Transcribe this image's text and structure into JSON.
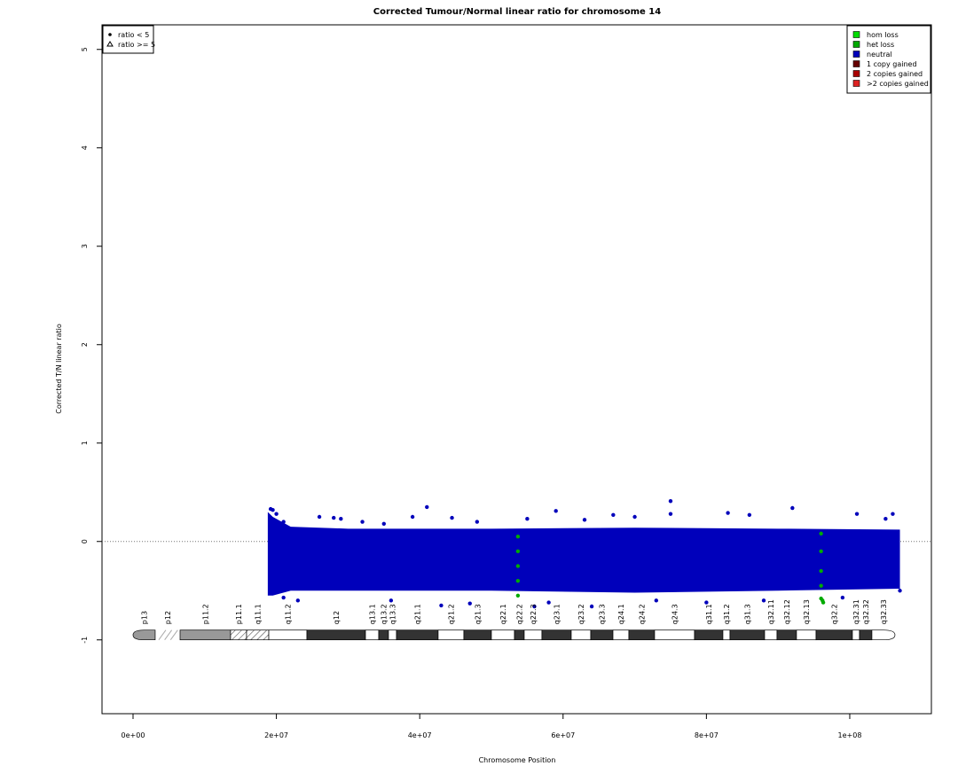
{
  "chart_data": {
    "type": "scatter",
    "title": "Corrected Tumour/Normal linear ratio for chromosome  14",
    "xlabel": "Chromosome Position",
    "ylabel": "Corrected T/N linear ratio",
    "xlim": [
      -4330000,
      111390000
    ],
    "ylim": [
      -1.75,
      5.25
    ],
    "xticks": [
      {
        "value": 0,
        "label": "0e+00"
      },
      {
        "value": 20000000,
        "label": "2e+07"
      },
      {
        "value": 40000000,
        "label": "4e+07"
      },
      {
        "value": 60000000,
        "label": "6e+07"
      },
      {
        "value": 80000000,
        "label": "8e+07"
      },
      {
        "value": 100000000,
        "label": "1e+08"
      }
    ],
    "yticks": [
      -1,
      0,
      1,
      2,
      3,
      4,
      5
    ],
    "hline": 0,
    "grid": false,
    "legend": "top-right",
    "shape_legend": [
      "ratio < 5",
      "ratio >= 5"
    ],
    "shape_legend_corner": "top-left",
    "series": [
      {
        "name": "hom loss",
        "color": "#00dd00",
        "x": [],
        "values": []
      },
      {
        "name": "het loss",
        "color": "#00aa00",
        "x": [
          53700000,
          53700000,
          53700000,
          53700000,
          53700000,
          96000000,
          96000000,
          96000000,
          96000000,
          96000000,
          96200000,
          96300000
        ],
        "values": [
          0.05,
          -0.1,
          -0.25,
          -0.4,
          -0.55,
          0.08,
          -0.1,
          -0.3,
          -0.45,
          -0.58,
          -0.6,
          -0.62
        ]
      },
      {
        "name": "neutral",
        "color": "#0000bb",
        "x": [
          19200000,
          19500000,
          20000000,
          21000000,
          26000000,
          28000000,
          29000000,
          32000000,
          35000000,
          39000000,
          41000000,
          44500000,
          48000000,
          55000000,
          59000000,
          63000000,
          67000000,
          70000000,
          75000000,
          75000000,
          83000000,
          86000000,
          92000000,
          101000000,
          106000000,
          105000000,
          21000000,
          23000000,
          36000000,
          43000000,
          47000000,
          56000000,
          58000000,
          64000000,
          73000000,
          80000000,
          88000000,
          99000000,
          107000000
        ],
        "values": [
          0.33,
          0.32,
          0.28,
          0.2,
          0.25,
          0.24,
          0.23,
          0.2,
          0.18,
          0.25,
          0.35,
          0.24,
          0.2,
          0.23,
          0.31,
          0.22,
          0.27,
          0.25,
          0.41,
          0.28,
          0.29,
          0.27,
          0.34,
          0.28,
          0.28,
          0.23,
          -0.57,
          -0.6,
          -0.6,
          -0.65,
          -0.63,
          -0.66,
          -0.62,
          -0.66,
          -0.6,
          -0.62,
          -0.6,
          -0.57,
          -0.5
        ]
      },
      {
        "name": "1 copy gained",
        "color": "#660000",
        "x": [],
        "values": []
      },
      {
        "name": "2 copies gained",
        "color": "#aa0000",
        "x": [],
        "values": []
      },
      {
        "name": ">2 copies gained",
        "color": "#dd2222",
        "x": [],
        "values": []
      }
    ],
    "band": {
      "series": "neutral",
      "x": [
        18800000,
        19500000,
        22000000,
        30000000,
        50000000,
        70000000,
        90000000,
        107000000
      ],
      "upper": [
        0.3,
        0.25,
        0.15,
        0.13,
        0.13,
        0.14,
        0.13,
        0.12
      ],
      "lower": [
        -0.55,
        -0.55,
        -0.5,
        -0.5,
        -0.5,
        -0.52,
        -0.5,
        -0.48
      ]
    },
    "ideogram": {
      "y": -0.95,
      "bands": [
        {
          "name": "p13",
          "start": 0,
          "end": 3090000,
          "stain": "gvar"
        },
        {
          "name": "p12",
          "start": 3090000,
          "end": 6560000,
          "stain": "stalk"
        },
        {
          "name": "p11.2",
          "start": 6560000,
          "end": 13610000,
          "stain": "gvar"
        },
        {
          "name": "p11.1",
          "start": 13610000,
          "end": 15840000,
          "stain": "acen"
        },
        {
          "name": "q11.1",
          "start": 15840000,
          "end": 18940000,
          "stain": "acen"
        },
        {
          "name": "q11.2",
          "start": 18940000,
          "end": 24260000,
          "stain": "gneg"
        },
        {
          "name": "q12",
          "start": 24260000,
          "end": 32430000,
          "stain": "gpos"
        },
        {
          "name": "q13.1",
          "start": 32430000,
          "end": 34280000,
          "stain": "gneg"
        },
        {
          "name": "q13.2",
          "start": 34280000,
          "end": 35640000,
          "stain": "gpos"
        },
        {
          "name": "q13.3",
          "start": 35640000,
          "end": 36760000,
          "stain": "gneg"
        },
        {
          "name": "q21.1",
          "start": 36760000,
          "end": 42570000,
          "stain": "gpos"
        },
        {
          "name": "q21.2",
          "start": 42570000,
          "end": 46160000,
          "stain": "gneg"
        },
        {
          "name": "q21.3",
          "start": 46160000,
          "end": 50000000,
          "stain": "gpos"
        },
        {
          "name": "q22.1",
          "start": 50000000,
          "end": 53220000,
          "stain": "gneg"
        },
        {
          "name": "q22.2",
          "start": 53220000,
          "end": 54580000,
          "stain": "gpos"
        },
        {
          "name": "q22.3",
          "start": 54580000,
          "end": 57050000,
          "stain": "gneg"
        },
        {
          "name": "q23.1",
          "start": 57050000,
          "end": 61140000,
          "stain": "gpos"
        },
        {
          "name": "q23.2",
          "start": 61140000,
          "end": 63860000,
          "stain": "gneg"
        },
        {
          "name": "q23.3",
          "start": 63860000,
          "end": 66960000,
          "stain": "gpos"
        },
        {
          "name": "q24.1",
          "start": 66960000,
          "end": 69180000,
          "stain": "gneg"
        },
        {
          "name": "q24.2",
          "start": 69180000,
          "end": 72770000,
          "stain": "gpos"
        },
        {
          "name": "q24.3",
          "start": 72770000,
          "end": 78340000,
          "stain": "gneg"
        },
        {
          "name": "q31.1",
          "start": 78340000,
          "end": 82300000,
          "stain": "gpos"
        },
        {
          "name": "q31.2",
          "start": 82300000,
          "end": 83290000,
          "stain": "gneg"
        },
        {
          "name": "q31.3",
          "start": 83290000,
          "end": 88120000,
          "stain": "gpos"
        },
        {
          "name": "q32.11",
          "start": 88120000,
          "end": 89850000,
          "stain": "gneg"
        },
        {
          "name": "q32.12",
          "start": 89850000,
          "end": 92570000,
          "stain": "gpos"
        },
        {
          "name": "q32.13",
          "start": 92570000,
          "end": 95300000,
          "stain": "gneg"
        },
        {
          "name": "q32.2",
          "start": 95300000,
          "end": 100370000,
          "stain": "gpos"
        },
        {
          "name": "q32.31",
          "start": 100370000,
          "end": 101360000,
          "stain": "gneg"
        },
        {
          "name": "q32.32",
          "start": 101360000,
          "end": 103090000,
          "stain": "gpos"
        },
        {
          "name": "q32.33",
          "start": 103090000,
          "end": 106310000,
          "stain": "gneg"
        }
      ]
    }
  }
}
